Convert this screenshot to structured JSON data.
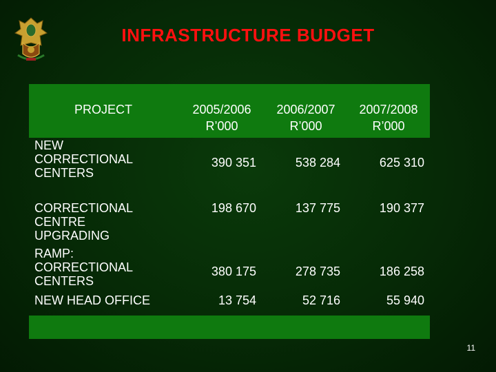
{
  "title": "INFRASTRUCTURE BUDGET",
  "header": {
    "project": "PROJECT",
    "years": [
      {
        "label": "2005/2006",
        "unit": "R’000"
      },
      {
        "label": "2006/2007",
        "unit": "R’000"
      },
      {
        "label": "2007/2008",
        "unit": "R’000"
      }
    ]
  },
  "rows": [
    {
      "project": "NEW CORRECTIONAL CENTERS",
      "values": [
        "390 351",
        "538 284",
        "625 310"
      ]
    },
    {
      "project": "CORRECTIONAL CENTRE UPGRADING",
      "values": [
        "198 670",
        "137 775",
        "190 377"
      ]
    },
    {
      "project": "RAMP: CORRECTIONAL CENTERS",
      "values": [
        "380 175",
        "278 735",
        "186 258"
      ]
    },
    {
      "project": "NEW HEAD OFFICE",
      "values": [
        "13 754",
        "52 716",
        "55 940"
      ]
    }
  ],
  "page_number": "11",
  "colors": {
    "title": "#ff1010",
    "band": "#0f7a0f",
    "background": "#062a06"
  },
  "icons": {
    "logo": "coat-of-arms-icon"
  }
}
